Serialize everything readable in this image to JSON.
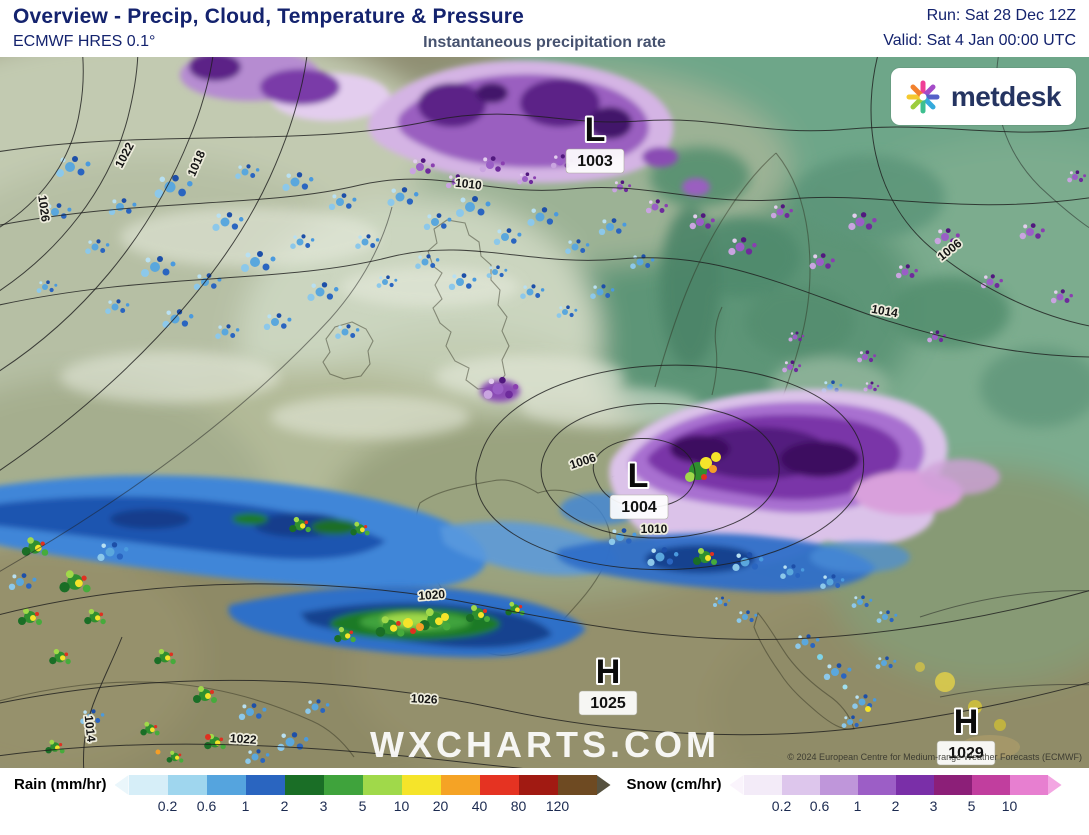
{
  "header": {
    "title": "Overview - Precip, Cloud, Temperature & Pressure",
    "model": "ECMWF HRES 0.1°",
    "subtitle": "Instantaneous precipitation rate",
    "run": "Run: Sat 28 Dec 12Z",
    "valid": "Valid: Sat 4 Jan 00:00 UTC"
  },
  "logo": {
    "text": "metdesk"
  },
  "map": {
    "watermark": "WXCHARTS.COM",
    "copyright": "© 2024 European Centre for Medium-range Weather Forecasts (ECMWF)",
    "pressure_centers": [
      {
        "letter": "L",
        "value": "1003"
      },
      {
        "letter": "L",
        "value": "1004"
      },
      {
        "letter": "H",
        "value": "1025"
      },
      {
        "letter": "H",
        "value": "1029"
      }
    ],
    "isobar_labels": [
      "1026",
      "1022",
      "1018",
      "1010",
      "1006",
      "1014",
      "1010",
      "1006",
      "1020",
      "1026",
      "1022",
      "1014"
    ]
  },
  "legend": {
    "rain": {
      "label": "Rain (mm/hr)",
      "values": [
        "0.2",
        "0.6",
        "1",
        "2",
        "3",
        "5",
        "10",
        "20",
        "40",
        "80",
        "120"
      ],
      "colors": [
        "#d6eef8",
        "#9fd6ee",
        "#55a4de",
        "#2a65c0",
        "#1a6e26",
        "#3fa33c",
        "#a0d94a",
        "#f5e42a",
        "#f5a325",
        "#e53322",
        "#a11a12",
        "#6e4a22"
      ],
      "arrow_left": "#eaf6fb",
      "arrow_right": "#57523f"
    },
    "snow": {
      "label": "Snow (cm/hr)",
      "values": [
        "0.2",
        "0.6",
        "1",
        "2",
        "3",
        "5",
        "10"
      ],
      "colors": [
        "#f3ebf8",
        "#ddc6ec",
        "#bf96da",
        "#9c5ec6",
        "#7a2fa8",
        "#8c1f78",
        "#c13e9e",
        "#e77fd0"
      ],
      "arrow_left": "#faf4fc",
      "arrow_right": "#f3a6e2"
    }
  },
  "colors": {
    "accent_navy": "#14236e",
    "subtitle_gray_blue": "#46526f"
  }
}
